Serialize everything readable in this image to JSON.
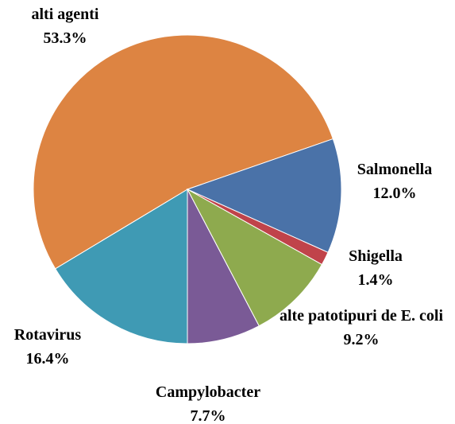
{
  "chart_data": {
    "type": "pie",
    "categories": [
      "Rotavirus",
      "alti agenti",
      "Salmonella",
      "Shigella",
      "alte patotipuri de E. coli",
      "Campylobacter"
    ],
    "values": [
      16.4,
      53.3,
      12.0,
      1.4,
      9.2,
      7.7
    ],
    "value_labels": [
      "16.4%",
      "53.3%",
      "12.0%",
      "1.4%",
      "9.2%",
      "7.7%"
    ],
    "colors": [
      "#3f9ab4",
      "#dd8442",
      "#4a72a8",
      "#c0434a",
      "#8eaa4e",
      "#7a5a96"
    ]
  }
}
